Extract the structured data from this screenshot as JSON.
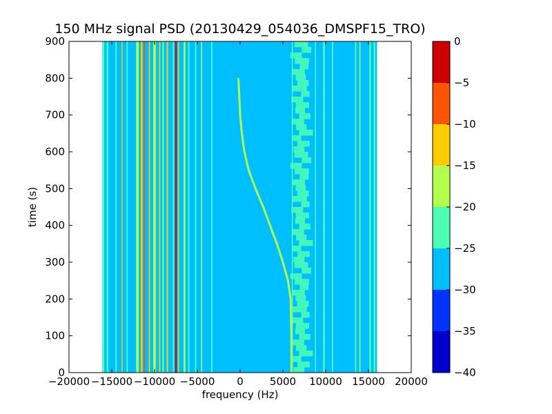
{
  "chart_data": {
    "type": "heatmap",
    "title": "150 MHz signal PSD (20130429_054036_DMSPF15_TRO)",
    "xlabel": "frequency (Hz)",
    "ylabel": "time (s)",
    "xlim": [
      -20000,
      20000
    ],
    "ylim": [
      0,
      900
    ],
    "xticks": [
      -20000,
      -15000,
      -10000,
      -5000,
      0,
      5000,
      10000,
      15000,
      20000
    ],
    "yticks": [
      0,
      100,
      200,
      300,
      400,
      500,
      600,
      700,
      800,
      900
    ],
    "data_frequency_range": [
      -16000,
      16000
    ],
    "colorbar": {
      "levels": [
        -40,
        -35,
        -30,
        -25,
        -20,
        -15,
        -10,
        -5,
        0
      ],
      "colors": [
        "#0000cc",
        "#0033ff",
        "#00bfff",
        "#4dffb3",
        "#b2ff4d",
        "#ffcc00",
        "#ff5500",
        "#cc0000"
      ],
      "ticks": [
        0,
        -5,
        -10,
        -15,
        -20,
        -25,
        -30,
        -35,
        -40
      ]
    },
    "background_level": "#00bfff",
    "vertical_lines": [
      {
        "freq": -16000,
        "width": 250,
        "level": "#4dffb3"
      },
      {
        "freq": -15500,
        "width": 200,
        "level": "#4dffb3"
      },
      {
        "freq": -14500,
        "width": 150,
        "level": "#4dffb3"
      },
      {
        "freq": -13800,
        "width": 120,
        "level": "#ffcc00"
      },
      {
        "freq": -13200,
        "width": 150,
        "level": "#4dffb3"
      },
      {
        "freq": -12000,
        "width": 300,
        "level": "#b2ff4d"
      },
      {
        "freq": -11500,
        "width": 200,
        "level": "#ffcc00"
      },
      {
        "freq": -11200,
        "width": 150,
        "level": "#ff5500"
      },
      {
        "freq": -10600,
        "width": 150,
        "level": "#ffcc00"
      },
      {
        "freq": -10000,
        "width": 300,
        "level": "#b2ff4d"
      },
      {
        "freq": -9400,
        "width": 150,
        "level": "#ffcc00"
      },
      {
        "freq": -9000,
        "width": 200,
        "level": "#4dffb3"
      },
      {
        "freq": -8500,
        "width": 180,
        "level": "#ffcc00"
      },
      {
        "freq": -7800,
        "width": 150,
        "level": "#4dffb3"
      },
      {
        "freq": -7500,
        "width": 180,
        "level": "#cc0000"
      },
      {
        "freq": -7200,
        "width": 120,
        "level": "#ffcc00"
      },
      {
        "freq": -6500,
        "width": 200,
        "level": "#b2ff4d"
      },
      {
        "freq": -6000,
        "width": 150,
        "level": "#4dffb3"
      },
      {
        "freq": -5200,
        "width": 150,
        "level": "#4dffb3"
      },
      {
        "freq": -4500,
        "width": 120,
        "level": "#b2ff4d"
      },
      {
        "freq": -3300,
        "width": 150,
        "level": "#4dffb3"
      },
      {
        "freq": 6100,
        "width": 120,
        "level": "#4dffb3"
      },
      {
        "freq": 8800,
        "width": 120,
        "level": "#4dffb3"
      },
      {
        "freq": 9800,
        "width": 200,
        "level": "#4dffb3"
      },
      {
        "freq": 10800,
        "width": 150,
        "level": "#4dffb3"
      },
      {
        "freq": 13500,
        "width": 150,
        "level": "#4dffb3"
      },
      {
        "freq": 14000,
        "width": 120,
        "level": "#b2ff4d"
      },
      {
        "freq": 15200,
        "width": 200,
        "level": "#4dffb3"
      },
      {
        "freq": 15700,
        "width": 200,
        "level": "#4dffb3"
      }
    ],
    "noisy_band": {
      "freq_min": 5800,
      "freq_max": 8500,
      "level": "#4dffb3"
    },
    "doppler_trace": {
      "level": "#b2ff4d",
      "points": [
        {
          "time": 0,
          "freq": 6000
        },
        {
          "time": 100,
          "freq": 6000
        },
        {
          "time": 200,
          "freq": 5900
        },
        {
          "time": 250,
          "freq": 5600
        },
        {
          "time": 300,
          "freq": 5000
        },
        {
          "time": 350,
          "freq": 4300
        },
        {
          "time": 400,
          "freq": 3500
        },
        {
          "time": 450,
          "freq": 2700
        },
        {
          "time": 500,
          "freq": 1800
        },
        {
          "time": 550,
          "freq": 1000
        },
        {
          "time": 600,
          "freq": 500
        },
        {
          "time": 650,
          "freq": 200
        },
        {
          "time": 700,
          "freq": 0
        },
        {
          "time": 750,
          "freq": -100
        },
        {
          "time": 800,
          "freq": -200
        }
      ]
    }
  }
}
